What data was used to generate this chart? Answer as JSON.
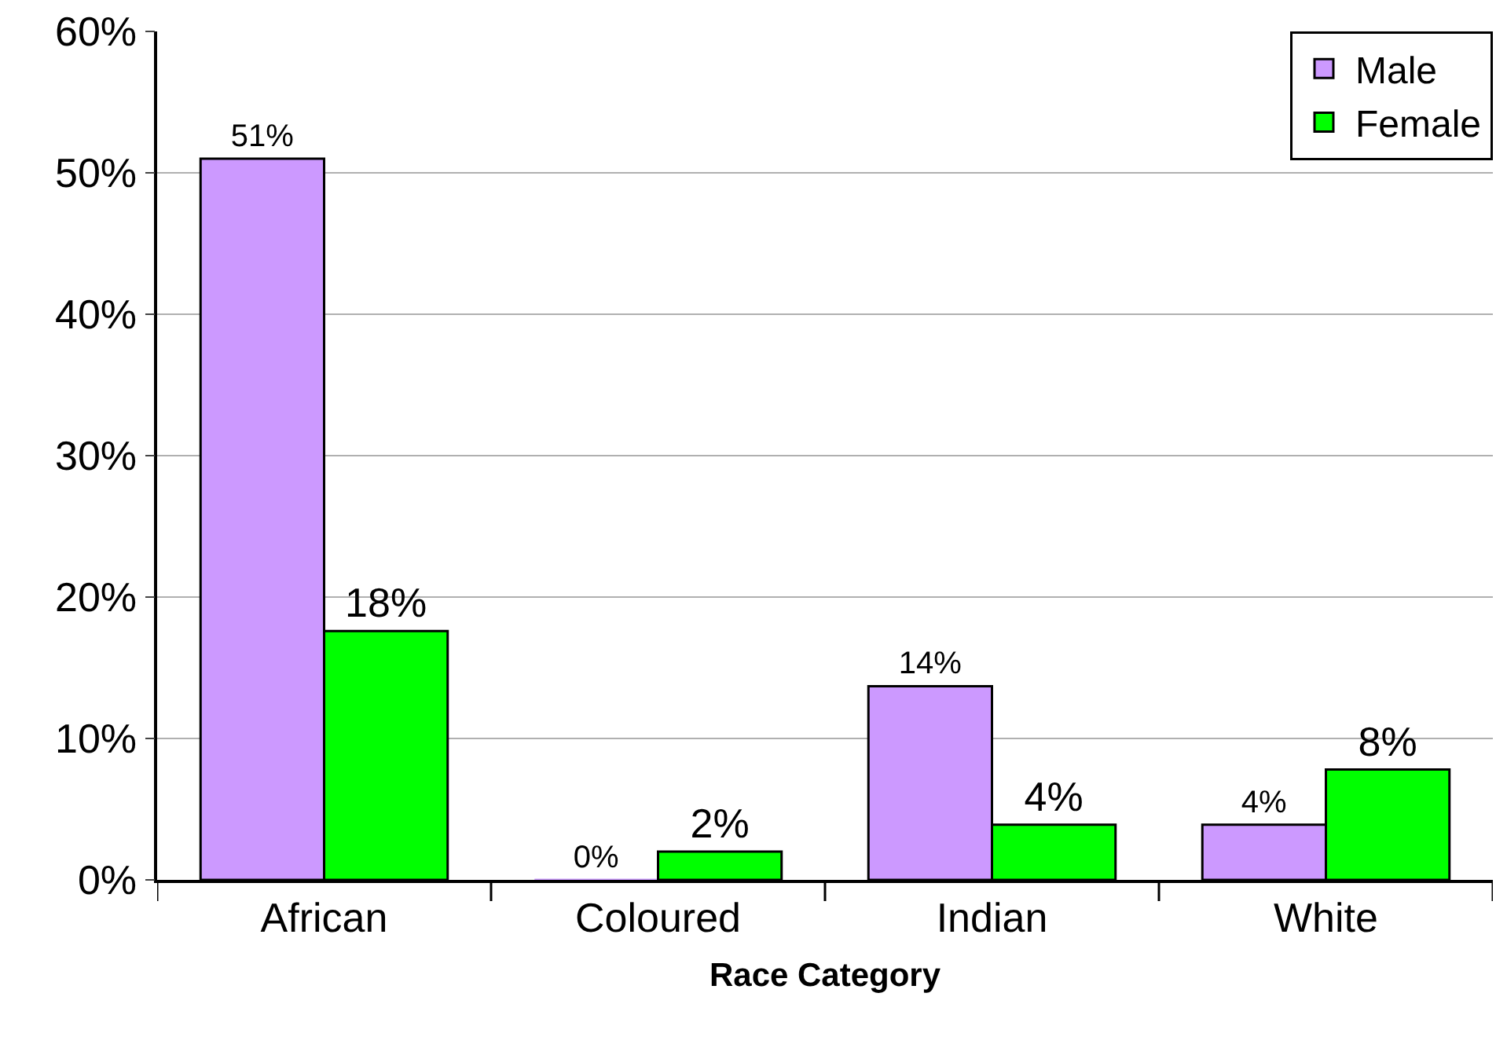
{
  "chart_data": {
    "type": "bar",
    "xlabel": "Race Category",
    "categories": [
      "African",
      "Coloured",
      "Indian",
      "White"
    ],
    "series": [
      {
        "name": "Male",
        "color": "#cc99ff",
        "values": [
          51,
          0,
          13.7,
          3.9
        ],
        "value_labels": [
          "51%",
          "0%",
          "14%",
          "4%"
        ]
      },
      {
        "name": "Female",
        "color": "#00ff00",
        "values": [
          17.6,
          2,
          3.9,
          7.8
        ],
        "value_labels": [
          "18%",
          "2%",
          "4%",
          "8%"
        ]
      }
    ],
    "ylim": [
      0,
      60
    ],
    "yticks": [
      {
        "value": 0,
        "label": "0%"
      },
      {
        "value": 10,
        "label": "10%"
      },
      {
        "value": 20,
        "label": "20%"
      },
      {
        "value": 30,
        "label": "30%"
      },
      {
        "value": 40,
        "label": "40%"
      },
      {
        "value": 50,
        "label": "50%"
      },
      {
        "value": 60,
        "label": "60%"
      }
    ],
    "grid": "y",
    "legend": "top right"
  }
}
